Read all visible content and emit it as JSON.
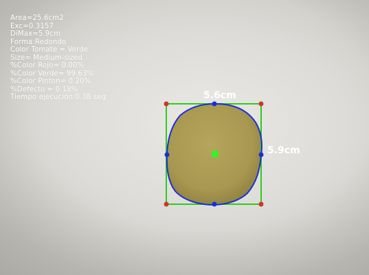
{
  "measurements": [
    "Area=25.6cm2",
    "Exc=0.3157",
    "DiMax=5.9cm",
    "Forma:Redondo",
    "Color Tomate = Verde",
    "Size= Medium-sized",
    "%Color Rojo= 0.00%",
    "%Color Verde= 99.63%",
    "%Color Pinton= 0.20%",
    "%Defecto = 0.18%",
    "Tiempo ejecucion:0.38 seg"
  ],
  "dimensions": {
    "width_label": "5.6cm",
    "height_label": "5.9cm"
  },
  "colors": {
    "bounding_box": "#2ecc1a",
    "contour": "#1a2fd6",
    "contour_point": "#1a2fd6",
    "center_point": "#22ff22",
    "corner_marker": "#d0352a",
    "object_fill": "#a89a52",
    "label_text": "#ffffff"
  }
}
